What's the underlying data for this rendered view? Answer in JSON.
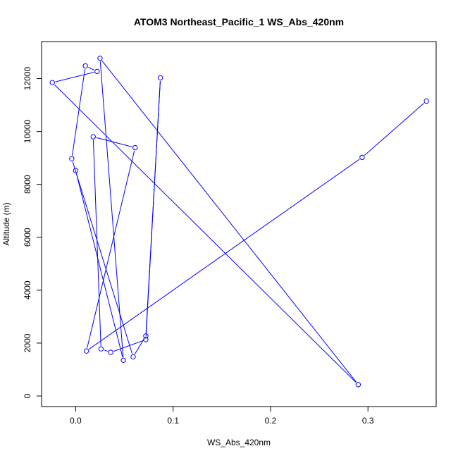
{
  "chart_data": {
    "type": "line",
    "title": "ATOM3 Northeast_Pacific_1 WS_Abs_420nm",
    "xlabel": "WS_Abs_420nm",
    "ylabel": "Altitude (m)",
    "xlim": [
      -0.035,
      0.37
    ],
    "ylim": [
      -400,
      13400
    ],
    "x_ticks": [
      0.0,
      0.1,
      0.2,
      0.3
    ],
    "x_tick_labels": [
      "0.0",
      "0.1",
      "0.2",
      "0.3"
    ],
    "y_ticks": [
      0,
      2000,
      4000,
      6000,
      8000,
      10000,
      12000
    ],
    "y_tick_labels": [
      "0",
      "2000",
      "4000",
      "6000",
      "8000",
      "10000",
      "12000"
    ],
    "grid": false,
    "series_color": "#0000ff",
    "points": [
      {
        "x": 0.36,
        "y": 11150
      },
      {
        "x": 0.294,
        "y": 9020
      },
      {
        "x": 0.011,
        "y": 1700
      },
      {
        "x": 0.061,
        "y": 9390
      },
      {
        "x": 0.018,
        "y": 9800
      },
      {
        "x": 0.026,
        "y": 1780
      },
      {
        "x": 0.036,
        "y": 1650
      },
      {
        "x": 0.072,
        "y": 2130
      },
      {
        "x": 0.087,
        "y": 12030
      },
      {
        "x": 0.072,
        "y": 2270
      },
      {
        "x": 0.059,
        "y": 1480
      },
      {
        "x": -0.004,
        "y": 8970
      },
      {
        "x": 0.01,
        "y": 12480
      },
      {
        "x": 0.022,
        "y": 12270
      },
      {
        "x": -0.024,
        "y": 11850
      },
      {
        "x": 0.29,
        "y": 430
      },
      {
        "x": 0.025,
        "y": 12770
      },
      {
        "x": 0.049,
        "y": 1350
      },
      {
        "x": 0.0,
        "y": 8520
      }
    ]
  }
}
